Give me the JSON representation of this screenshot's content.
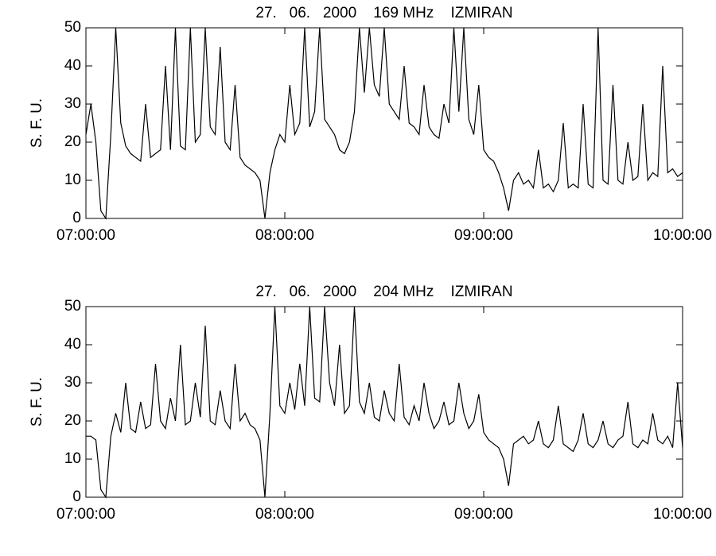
{
  "chart_data": [
    {
      "type": "line",
      "title": "27.   06.   2000    169 MHz    IZMIRAN",
      "ylabel": "S. F. U.",
      "x": [
        "07:00:00",
        "07:01:30",
        "07:03:00",
        "07:04:30",
        "07:06:00",
        "07:07:30",
        "07:09:00",
        "07:10:30",
        "07:12:00",
        "07:13:30",
        "07:15:00",
        "07:16:30",
        "07:18:00",
        "07:19:30",
        "07:21:00",
        "07:22:30",
        "07:24:00",
        "07:25:30",
        "07:27:00",
        "07:28:30",
        "07:30:00",
        "07:31:30",
        "07:33:00",
        "07:34:30",
        "07:36:00",
        "07:37:30",
        "07:39:00",
        "07:40:30",
        "07:42:00",
        "07:43:30",
        "07:45:00",
        "07:46:30",
        "07:48:00",
        "07:49:30",
        "07:51:00",
        "07:52:30",
        "07:54:00",
        "07:55:30",
        "07:57:00",
        "07:58:30",
        "08:00:00",
        "08:01:30",
        "08:03:00",
        "08:04:30",
        "08:06:00",
        "08:07:30",
        "08:09:00",
        "08:10:30",
        "08:12:00",
        "08:13:30",
        "08:15:00",
        "08:16:30",
        "08:18:00",
        "08:19:30",
        "08:21:00",
        "08:22:30",
        "08:24:00",
        "08:25:30",
        "08:27:00",
        "08:28:30",
        "08:30:00",
        "08:31:30",
        "08:33:00",
        "08:34:30",
        "08:36:00",
        "08:37:30",
        "08:39:00",
        "08:40:30",
        "08:42:00",
        "08:43:30",
        "08:45:00",
        "08:46:30",
        "08:48:00",
        "08:49:30",
        "08:51:00",
        "08:52:30",
        "08:54:00",
        "08:55:30",
        "08:57:00",
        "08:58:30",
        "09:00:00",
        "09:01:30",
        "09:03:00",
        "09:04:30",
        "09:06:00",
        "09:07:30",
        "09:09:00",
        "09:10:30",
        "09:12:00",
        "09:13:30",
        "09:15:00",
        "09:16:30",
        "09:18:00",
        "09:19:30",
        "09:21:00",
        "09:22:30",
        "09:24:00",
        "09:25:30",
        "09:27:00",
        "09:28:30",
        "09:30:00",
        "09:31:30",
        "09:33:00",
        "09:34:30",
        "09:36:00",
        "09:37:30",
        "09:39:00",
        "09:40:30",
        "09:42:00",
        "09:43:30",
        "09:45:00",
        "09:46:30",
        "09:48:00",
        "09:49:30",
        "09:51:00",
        "09:52:30",
        "09:54:00",
        "09:55:30",
        "09:57:00",
        "09:58:30",
        "10:00:00"
      ],
      "series": [
        {
          "color": "#000000",
          "values": [
            22,
            30,
            20,
            2,
            0,
            22,
            50,
            25,
            19,
            17,
            16,
            15,
            30,
            16,
            17,
            18,
            40,
            18,
            50,
            19,
            18,
            50,
            20,
            22,
            50,
            24,
            22,
            45,
            20,
            18,
            35,
            16,
            14,
            13,
            12,
            10,
            0,
            12,
            18,
            22,
            20,
            35,
            22,
            25,
            50,
            24,
            28,
            50,
            26,
            24,
            22,
            18,
            17,
            20,
            28,
            50,
            33,
            50,
            35,
            32,
            50,
            30,
            28,
            26,
            40,
            25,
            24,
            22,
            35,
            24,
            22,
            21,
            30,
            25,
            50,
            28,
            50,
            26,
            22,
            35,
            18,
            16,
            15,
            12,
            8,
            2,
            10,
            12,
            9,
            10,
            8,
            18,
            8,
            9,
            7,
            10,
            25,
            8,
            9,
            8,
            30,
            9,
            8,
            50,
            10,
            9,
            35,
            10,
            9,
            20,
            10,
            11,
            30,
            10,
            12,
            11,
            40,
            12,
            13,
            11,
            12
          ]
        }
      ],
      "xlim": [
        "07:00:00",
        "10:00:00"
      ],
      "xticks": [
        "07:00:00",
        "08:00:00",
        "09:00:00",
        "10:00:00"
      ],
      "ylim": [
        0,
        50
      ],
      "yticks": [
        0,
        10,
        20,
        30,
        40,
        50
      ]
    },
    {
      "type": "line",
      "title": "27.   06.   2000    204 MHz    IZMIRAN",
      "ylabel": "S. F. U.",
      "x": [
        "07:00:00",
        "07:01:30",
        "07:03:00",
        "07:04:30",
        "07:06:00",
        "07:07:30",
        "07:09:00",
        "07:10:30",
        "07:12:00",
        "07:13:30",
        "07:15:00",
        "07:16:30",
        "07:18:00",
        "07:19:30",
        "07:21:00",
        "07:22:30",
        "07:24:00",
        "07:25:30",
        "07:27:00",
        "07:28:30",
        "07:30:00",
        "07:31:30",
        "07:33:00",
        "07:34:30",
        "07:36:00",
        "07:37:30",
        "07:39:00",
        "07:40:30",
        "07:42:00",
        "07:43:30",
        "07:45:00",
        "07:46:30",
        "07:48:00",
        "07:49:30",
        "07:51:00",
        "07:52:30",
        "07:54:00",
        "07:55:30",
        "07:57:00",
        "07:58:30",
        "08:00:00",
        "08:01:30",
        "08:03:00",
        "08:04:30",
        "08:06:00",
        "08:07:30",
        "08:09:00",
        "08:10:30",
        "08:12:00",
        "08:13:30",
        "08:15:00",
        "08:16:30",
        "08:18:00",
        "08:19:30",
        "08:21:00",
        "08:22:30",
        "08:24:00",
        "08:25:30",
        "08:27:00",
        "08:28:30",
        "08:30:00",
        "08:31:30",
        "08:33:00",
        "08:34:30",
        "08:36:00",
        "08:37:30",
        "08:39:00",
        "08:40:30",
        "08:42:00",
        "08:43:30",
        "08:45:00",
        "08:46:30",
        "08:48:00",
        "08:49:30",
        "08:51:00",
        "08:52:30",
        "08:54:00",
        "08:55:30",
        "08:57:00",
        "08:58:30",
        "09:00:00",
        "09:01:30",
        "09:03:00",
        "09:04:30",
        "09:06:00",
        "09:07:30",
        "09:09:00",
        "09:10:30",
        "09:12:00",
        "09:13:30",
        "09:15:00",
        "09:16:30",
        "09:18:00",
        "09:19:30",
        "09:21:00",
        "09:22:30",
        "09:24:00",
        "09:25:30",
        "09:27:00",
        "09:28:30",
        "09:30:00",
        "09:31:30",
        "09:33:00",
        "09:34:30",
        "09:36:00",
        "09:37:30",
        "09:39:00",
        "09:40:30",
        "09:42:00",
        "09:43:30",
        "09:45:00",
        "09:46:30",
        "09:48:00",
        "09:49:30",
        "09:51:00",
        "09:52:30",
        "09:54:00",
        "09:55:30",
        "09:57:00",
        "09:58:30",
        "10:00:00"
      ],
      "series": [
        {
          "color": "#000000",
          "values": [
            16,
            16,
            15,
            2,
            0,
            16,
            22,
            17,
            30,
            18,
            17,
            25,
            18,
            19,
            35,
            20,
            18,
            26,
            20,
            40,
            19,
            20,
            30,
            21,
            45,
            20,
            19,
            28,
            20,
            18,
            35,
            20,
            22,
            19,
            18,
            15,
            0,
            22,
            50,
            24,
            22,
            30,
            23,
            35,
            24,
            50,
            26,
            25,
            50,
            30,
            24,
            40,
            22,
            24,
            50,
            25,
            22,
            30,
            21,
            20,
            28,
            22,
            20,
            35,
            21,
            19,
            24,
            20,
            30,
            22,
            18,
            20,
            25,
            19,
            20,
            30,
            22,
            18,
            20,
            27,
            17,
            15,
            14,
            13,
            10,
            3,
            14,
            15,
            16,
            14,
            15,
            20,
            14,
            13,
            15,
            24,
            14,
            13,
            12,
            15,
            22,
            14,
            13,
            15,
            20,
            14,
            13,
            15,
            16,
            25,
            14,
            13,
            15,
            14,
            22,
            15,
            14,
            16,
            13,
            30,
            13
          ]
        }
      ],
      "xlim": [
        "07:00:00",
        "10:00:00"
      ],
      "xticks": [
        "07:00:00",
        "08:00:00",
        "09:00:00",
        "10:00:00"
      ],
      "ylim": [
        0,
        50
      ],
      "yticks": [
        0,
        10,
        20,
        30,
        40,
        50
      ]
    }
  ]
}
